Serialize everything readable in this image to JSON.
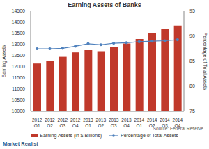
{
  "chart_data": {
    "type": "bar",
    "title": "Earning Assets of Banks",
    "ylabel": "Earning Assets",
    "y2label": "Percentage of Total Assets",
    "categories": [
      "2012 Q1",
      "2012 Q2",
      "2012 Q3",
      "2012 Q4",
      "2013 Q1",
      "2013 Q2",
      "2013 Q3",
      "2013 Q4",
      "2014 Q1",
      "2014 Q2",
      "2014 Q3",
      "2014 Q4"
    ],
    "series": [
      {
        "name": "Earning Assets (in $ Billions)",
        "type": "bar",
        "color": "#c0392b",
        "values": [
          12150,
          12250,
          12450,
          12650,
          12750,
          12700,
          12900,
          13050,
          13250,
          13500,
          13700,
          13850
        ]
      },
      {
        "name": "Percentage of Total Assets",
        "type": "line",
        "axis": "y2",
        "color": "#4f81bd",
        "marker": "circle",
        "values": [
          87.5,
          87.5,
          87.6,
          88.0,
          88.5,
          88.3,
          88.6,
          88.7,
          88.9,
          89.0,
          89.1,
          89.3
        ]
      }
    ],
    "ylim": [
      10000,
      14500
    ],
    "yticks": [
      10000,
      10500,
      11000,
      11500,
      12000,
      12500,
      13000,
      13500,
      14000,
      14500
    ],
    "y2lim": [
      75,
      95
    ],
    "y2ticks": [
      75,
      80,
      85,
      90,
      95
    ],
    "grid": false,
    "annotations": [
      "Source: Federal Reserve",
      "Market Realist"
    ]
  }
}
